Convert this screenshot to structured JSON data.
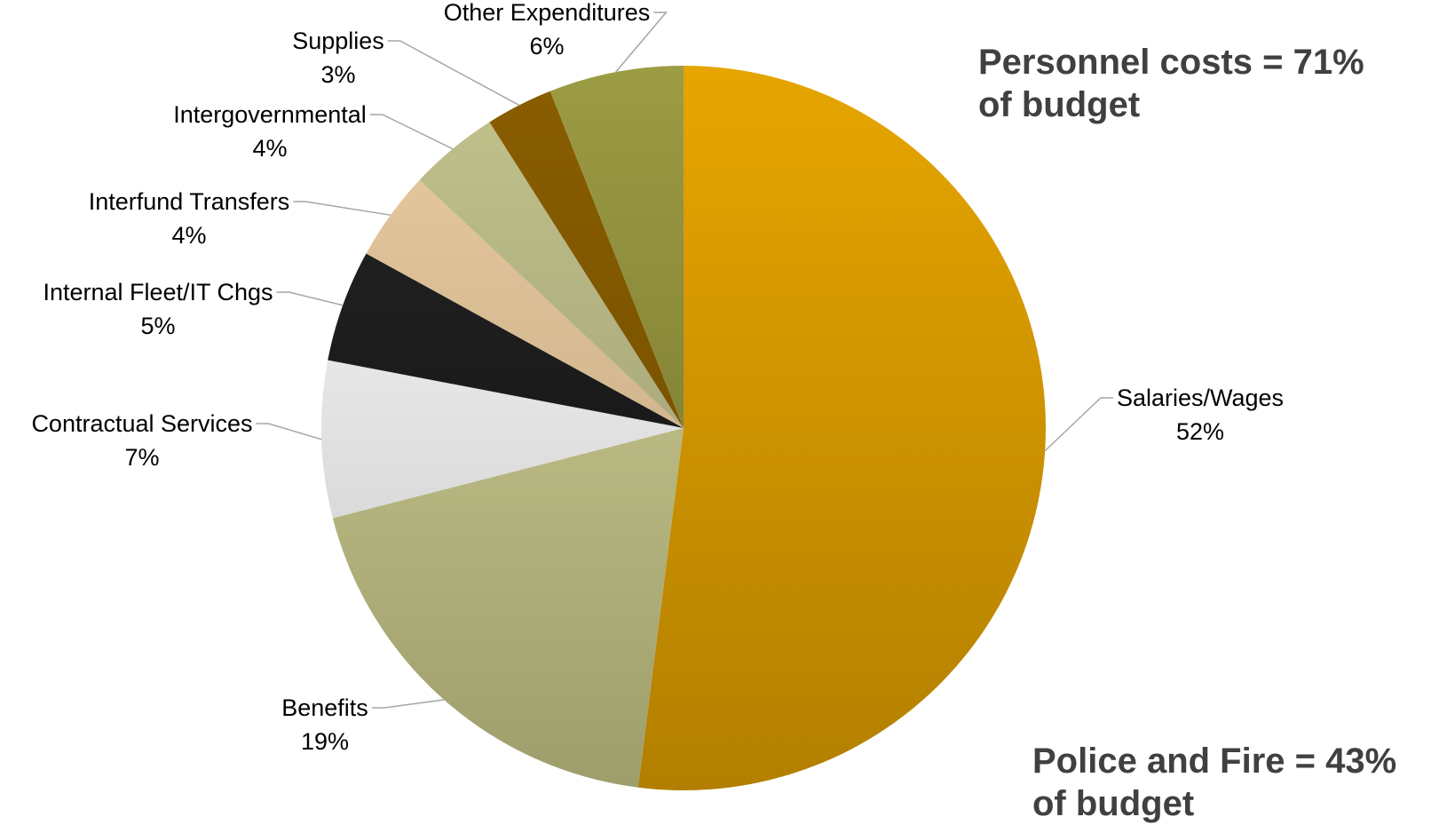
{
  "chart_data": {
    "type": "pie",
    "title": "",
    "slices": [
      {
        "label": "Salaries/Wages",
        "value": 52,
        "display": "52%",
        "color_top": "#e6a500",
        "color_bottom": "#b27f00"
      },
      {
        "label": "Benefits",
        "value": 19,
        "display": "19%",
        "color_top": "#d4d39a",
        "color_bottom": "#9e9e6c"
      },
      {
        "label": "Contractual Services",
        "value": 7,
        "display": "7%",
        "color_top": "#ffffff",
        "color_bottom": "#c4c4c4"
      },
      {
        "label": "Internal Fleet/IT Chgs",
        "value": 5,
        "display": "5%",
        "color_top": "#262626",
        "color_bottom": "#0d0d0d"
      },
      {
        "label": "Interfund Transfers",
        "value": 4,
        "display": "4%",
        "color_top": "#ebcca1",
        "color_bottom": "#b9a07d"
      },
      {
        "label": "Intergovernmental",
        "value": 4,
        "display": "4%",
        "color_top": "#c3c38c",
        "color_bottom": "#939370"
      },
      {
        "label": "Supplies",
        "value": 3,
        "display": "3%",
        "color_top": "#8a5e00",
        "color_bottom": "#6b4900"
      },
      {
        "label": "Other Expenditures",
        "value": 6,
        "display": "6%",
        "color_top": "#9c9c44",
        "color_bottom": "#6e6e2a"
      }
    ],
    "annotations": [
      {
        "text": "Personnel costs = 71%\nof budget",
        "position": "top-right"
      },
      {
        "text": "Police and Fire = 43%\nof budget",
        "position": "bottom-right"
      }
    ],
    "legend": "none",
    "text_color": "#404040",
    "leader_line_color": "#a6a6a6"
  }
}
